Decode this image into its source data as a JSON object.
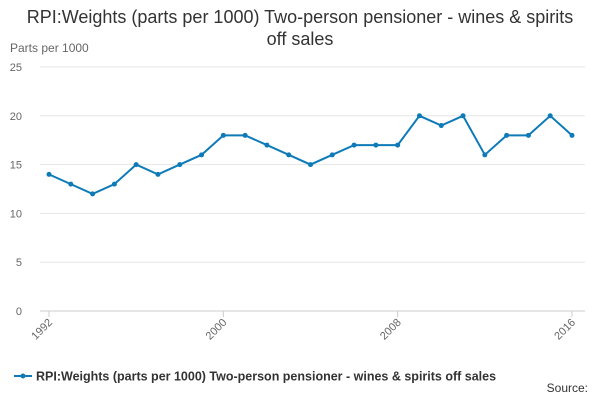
{
  "chart_data": {
    "type": "line",
    "title": "RPI:Weights (parts per 1000) Two-person pensioner - wines & spirits off sales",
    "y_label": "Parts per 1000",
    "x": [
      1992,
      1993,
      1994,
      1995,
      1996,
      1997,
      1998,
      1999,
      2000,
      2001,
      2002,
      2003,
      2004,
      2005,
      2006,
      2007,
      2008,
      2009,
      2010,
      2011,
      2012,
      2013,
      2014,
      2015,
      2016
    ],
    "series": [
      {
        "name": "RPI:Weights (parts per 1000) Two-person pensioner - wines & spirits off sales",
        "color": "#0e7bb8",
        "values": [
          14,
          13,
          12,
          13,
          15,
          14,
          15,
          16,
          18,
          18,
          17,
          16,
          15,
          16,
          17,
          17,
          17,
          20,
          19,
          20,
          16,
          18,
          18,
          20,
          18
        ]
      }
    ],
    "xlim": [
      1992,
      2016
    ],
    "xticks": [
      1992,
      2000,
      2008,
      2016
    ],
    "ylim": [
      0,
      25
    ],
    "yticks": [
      0,
      5,
      10,
      15,
      20,
      25
    ],
    "grid": true,
    "source": "Source:"
  }
}
